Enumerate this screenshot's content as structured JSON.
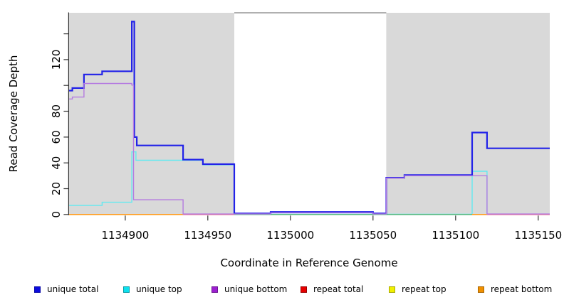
{
  "chart_data": {
    "type": "line",
    "subtype": "step-coverage",
    "xlabel": "Coordinate in Reference Genome",
    "ylabel": "Read Coverage Depth",
    "xlim": [
      1134866,
      1135157
    ],
    "ylim": [
      0,
      156
    ],
    "grid": false,
    "x_ticks": [
      {
        "value": 1134900,
        "label": "1134900"
      },
      {
        "value": 1134950,
        "label": "1134950"
      },
      {
        "value": 1135000,
        "label": "1135000"
      },
      {
        "value": 1135050,
        "label": "1135050"
      },
      {
        "value": 1135100,
        "label": "1135100"
      },
      {
        "value": 1135150,
        "label": "1135150"
      }
    ],
    "y_ticks": [
      {
        "value": 0,
        "label": "0"
      },
      {
        "value": 20,
        "label": "20"
      },
      {
        "value": 40,
        "label": "40"
      },
      {
        "value": 60,
        "label": "60"
      },
      {
        "value": 80,
        "label": "80"
      },
      {
        "value": 100,
        "label": ""
      },
      {
        "value": 120,
        "label": "120"
      },
      {
        "value": 140,
        "label": ""
      }
    ],
    "shaded_regions": [
      {
        "from": 1134866,
        "to": 1134966,
        "color": "#d9d9d9"
      },
      {
        "from": 1135058,
        "to": 1135157,
        "color": "#d9d9d9"
      }
    ],
    "top_border_gap": {
      "from": 1134966,
      "to": 1135058,
      "color": "#808080"
    },
    "series": [
      {
        "name": "repeat total",
        "color": "#e03030",
        "width": 1,
        "points": [
          [
            1134866,
            0
          ],
          [
            1135157,
            0
          ]
        ]
      },
      {
        "name": "repeat top",
        "color": "#f0f000",
        "width": 1,
        "points": [
          [
            1134866,
            0
          ],
          [
            1135157,
            0
          ]
        ]
      },
      {
        "name": "repeat bottom",
        "color": "#ff9d1e",
        "width": 1,
        "points": [
          [
            1134866,
            0
          ],
          [
            1135157,
            0
          ]
        ]
      },
      {
        "name": "unique top",
        "color": "#63e9f0",
        "width": 1.4,
        "points": [
          [
            1134866,
            7
          ],
          [
            1134886,
            9.5
          ],
          [
            1134904,
            48.5
          ],
          [
            1134906.5,
            42
          ],
          [
            1134947,
            38.5
          ],
          [
            1134966,
            0.2
          ],
          [
            1135110,
            33.5
          ],
          [
            1135119,
            0.2
          ],
          [
            1135157,
            0.2
          ]
        ]
      },
      {
        "name": "unique total",
        "color": "#2222e8",
        "width": 2.2,
        "points": [
          [
            1134866,
            96
          ],
          [
            1134868,
            98
          ],
          [
            1134875,
            108.5
          ],
          [
            1134886,
            111
          ],
          [
            1134904,
            149.5
          ],
          [
            1134905.5,
            60
          ],
          [
            1134907,
            53.5
          ],
          [
            1134935,
            42.5
          ],
          [
            1134947,
            39
          ],
          [
            1134966,
            0.8
          ],
          [
            1134988,
            2
          ],
          [
            1135050,
            0.8
          ],
          [
            1135058,
            28.5
          ],
          [
            1135069,
            30.5
          ],
          [
            1135110,
            63.5
          ],
          [
            1135119,
            51.3
          ],
          [
            1135157,
            51.3
          ]
        ]
      },
      {
        "name": "unique bottom",
        "color": "#b57ce0",
        "width": 1.4,
        "points": [
          [
            1134866,
            89.5
          ],
          [
            1134868,
            91
          ],
          [
            1134875,
            101.5
          ],
          [
            1134904,
            100.3
          ],
          [
            1134905,
            11.4
          ],
          [
            1134935,
            0.4
          ],
          [
            1134988,
            1.2
          ],
          [
            1135050,
            0.4
          ],
          [
            1135058,
            28.2
          ],
          [
            1135069,
            30
          ],
          [
            1135119,
            0.4
          ],
          [
            1135157,
            0.4
          ]
        ]
      }
    ],
    "baseline_segments": [
      {
        "name": "repeat bottom baseline",
        "color": "#ff9d1e",
        "from": 1134866,
        "to": 1134935
      },
      {
        "name": "rose baseline",
        "color": "#e8688c",
        "from": 1134935,
        "to": 1134966
      },
      {
        "name": "green baseline",
        "color": "#58bb84",
        "from": 1134966,
        "to": 1135110
      },
      {
        "name": "repeat bottom baseline",
        "color": "#ff9d1e",
        "from": 1135110,
        "to": 1135119
      },
      {
        "name": "rose baseline",
        "color": "#e8688c",
        "from": 1135119,
        "to": 1135157
      }
    ],
    "legend": [
      {
        "label": "unique total",
        "color": "#0b0bdd",
        "border": "#0808a8"
      },
      {
        "label": "unique top",
        "color": "#0ce1ee",
        "border": "#0a9aa5"
      },
      {
        "label": "unique bottom",
        "color": "#9c1fd0",
        "border": "#6d1693"
      },
      {
        "label": "repeat total",
        "color": "#e60000",
        "border": "#990000"
      },
      {
        "label": "repeat top",
        "color": "#f0f000",
        "border": "#a8a800"
      },
      {
        "label": "repeat bottom",
        "color": "#f09000",
        "border": "#a86400"
      }
    ]
  }
}
